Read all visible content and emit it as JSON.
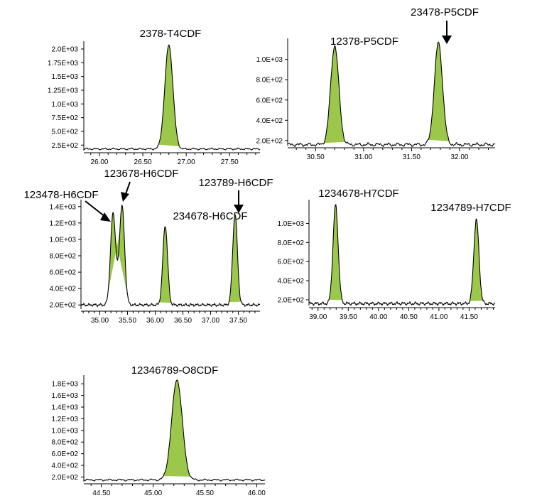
{
  "colors": {
    "peak_fill": "#9bc84b",
    "trace": "#000000"
  },
  "chart_data": [
    {
      "type": "area",
      "annotations": [
        {
          "text": "2378-T4CDF"
        }
      ],
      "x_ticks": [
        "26.00",
        "26.50",
        "27.00",
        "27.50"
      ],
      "y_ticks": [
        "2.5E+02",
        "5.0E+02",
        "7.5E+02",
        "1.0E+03",
        "1.25E+03",
        "1.5E+03",
        "1.75E+03",
        "2.0E+03"
      ],
      "xlim": [
        25.82,
        27.85
      ],
      "ylim": [
        150,
        2090
      ],
      "baseline": 180,
      "peaks": [
        {
          "x": 26.8,
          "height": 2070,
          "width": 0.11
        }
      ]
    },
    {
      "type": "area",
      "annotations": [
        {
          "text": "12378-P5CDF"
        },
        {
          "text": "23478-P5CDF"
        }
      ],
      "x_ticks": [
        "30.50",
        "31.00",
        "31.50",
        "32.00"
      ],
      "y_ticks": [
        "2.0E+02",
        "4.0E+02",
        "6.0E+02",
        "8.0E+02",
        "1.0E+03"
      ],
      "xlim": [
        30.21,
        32.37
      ],
      "ylim": [
        150,
        1180
      ],
      "baseline": 160,
      "peaks": [
        {
          "x": 30.7,
          "height": 1135,
          "width": 0.1
        },
        {
          "x": 31.78,
          "height": 1165,
          "width": 0.1
        }
      ]
    },
    {
      "type": "area",
      "annotations": [
        {
          "text": "123478-H6CDF"
        },
        {
          "text": "123678-H6CDF"
        },
        {
          "text": "234678-H6CDF"
        },
        {
          "text": "123789-H6CDF"
        }
      ],
      "x_ticks": [
        "35.00",
        "35.50",
        "36.00",
        "36.50",
        "37.00",
        "37.50"
      ],
      "y_ticks": [
        "2.0E+02",
        "4.0E+02",
        "6.0E+02",
        "8.0E+02",
        "1.0E+03",
        "1.2E+03",
        "1.4E+03"
      ],
      "xlim": [
        34.66,
        37.89
      ],
      "ylim": [
        150,
        1450
      ],
      "baseline": 200,
      "peaks": [
        {
          "x": 35.24,
          "height": 1320,
          "width": 0.11
        },
        {
          "x": 35.4,
          "height": 1410,
          "width": 0.11
        },
        {
          "x": 36.18,
          "height": 1170,
          "width": 0.1
        },
        {
          "x": 37.44,
          "height": 1310,
          "width": 0.1
        }
      ]
    },
    {
      "type": "area",
      "annotations": [
        {
          "text": "1234678-H7CDF"
        },
        {
          "text": "1234789-H7CDF"
        }
      ],
      "x_ticks": [
        "39.00",
        "39.50",
        "40.00",
        "40.50",
        "41.00",
        "41.50"
      ],
      "y_ticks": [
        "2.0E+02",
        "4.0E+02",
        "6.0E+02",
        "8.0E+02",
        "1.0E+03"
      ],
      "xlim": [
        38.85,
        41.93
      ],
      "ylim": [
        140,
        1220
      ],
      "baseline": 160,
      "peaks": [
        {
          "x": 39.29,
          "height": 1190,
          "width": 0.1
        },
        {
          "x": 41.62,
          "height": 1040,
          "width": 0.1
        }
      ]
    },
    {
      "type": "area",
      "annotations": [
        {
          "text": "12346789-O8CDF"
        }
      ],
      "x_ticks": [
        "44.50",
        "45.00",
        "45.50",
        "46.00"
      ],
      "y_ticks": [
        "2.0E+02",
        "4.0E+02",
        "6.0E+02",
        "8.0E+02",
        "1.0E+03",
        "1.2E+03",
        "1.4E+03",
        "1.6E+03",
        "1.8E+03"
      ],
      "xlim": [
        44.33,
        46.08
      ],
      "ylim": [
        120,
        1900
      ],
      "baseline": 150,
      "peaks": [
        {
          "x": 45.23,
          "height": 1870,
          "width": 0.12
        }
      ]
    }
  ]
}
